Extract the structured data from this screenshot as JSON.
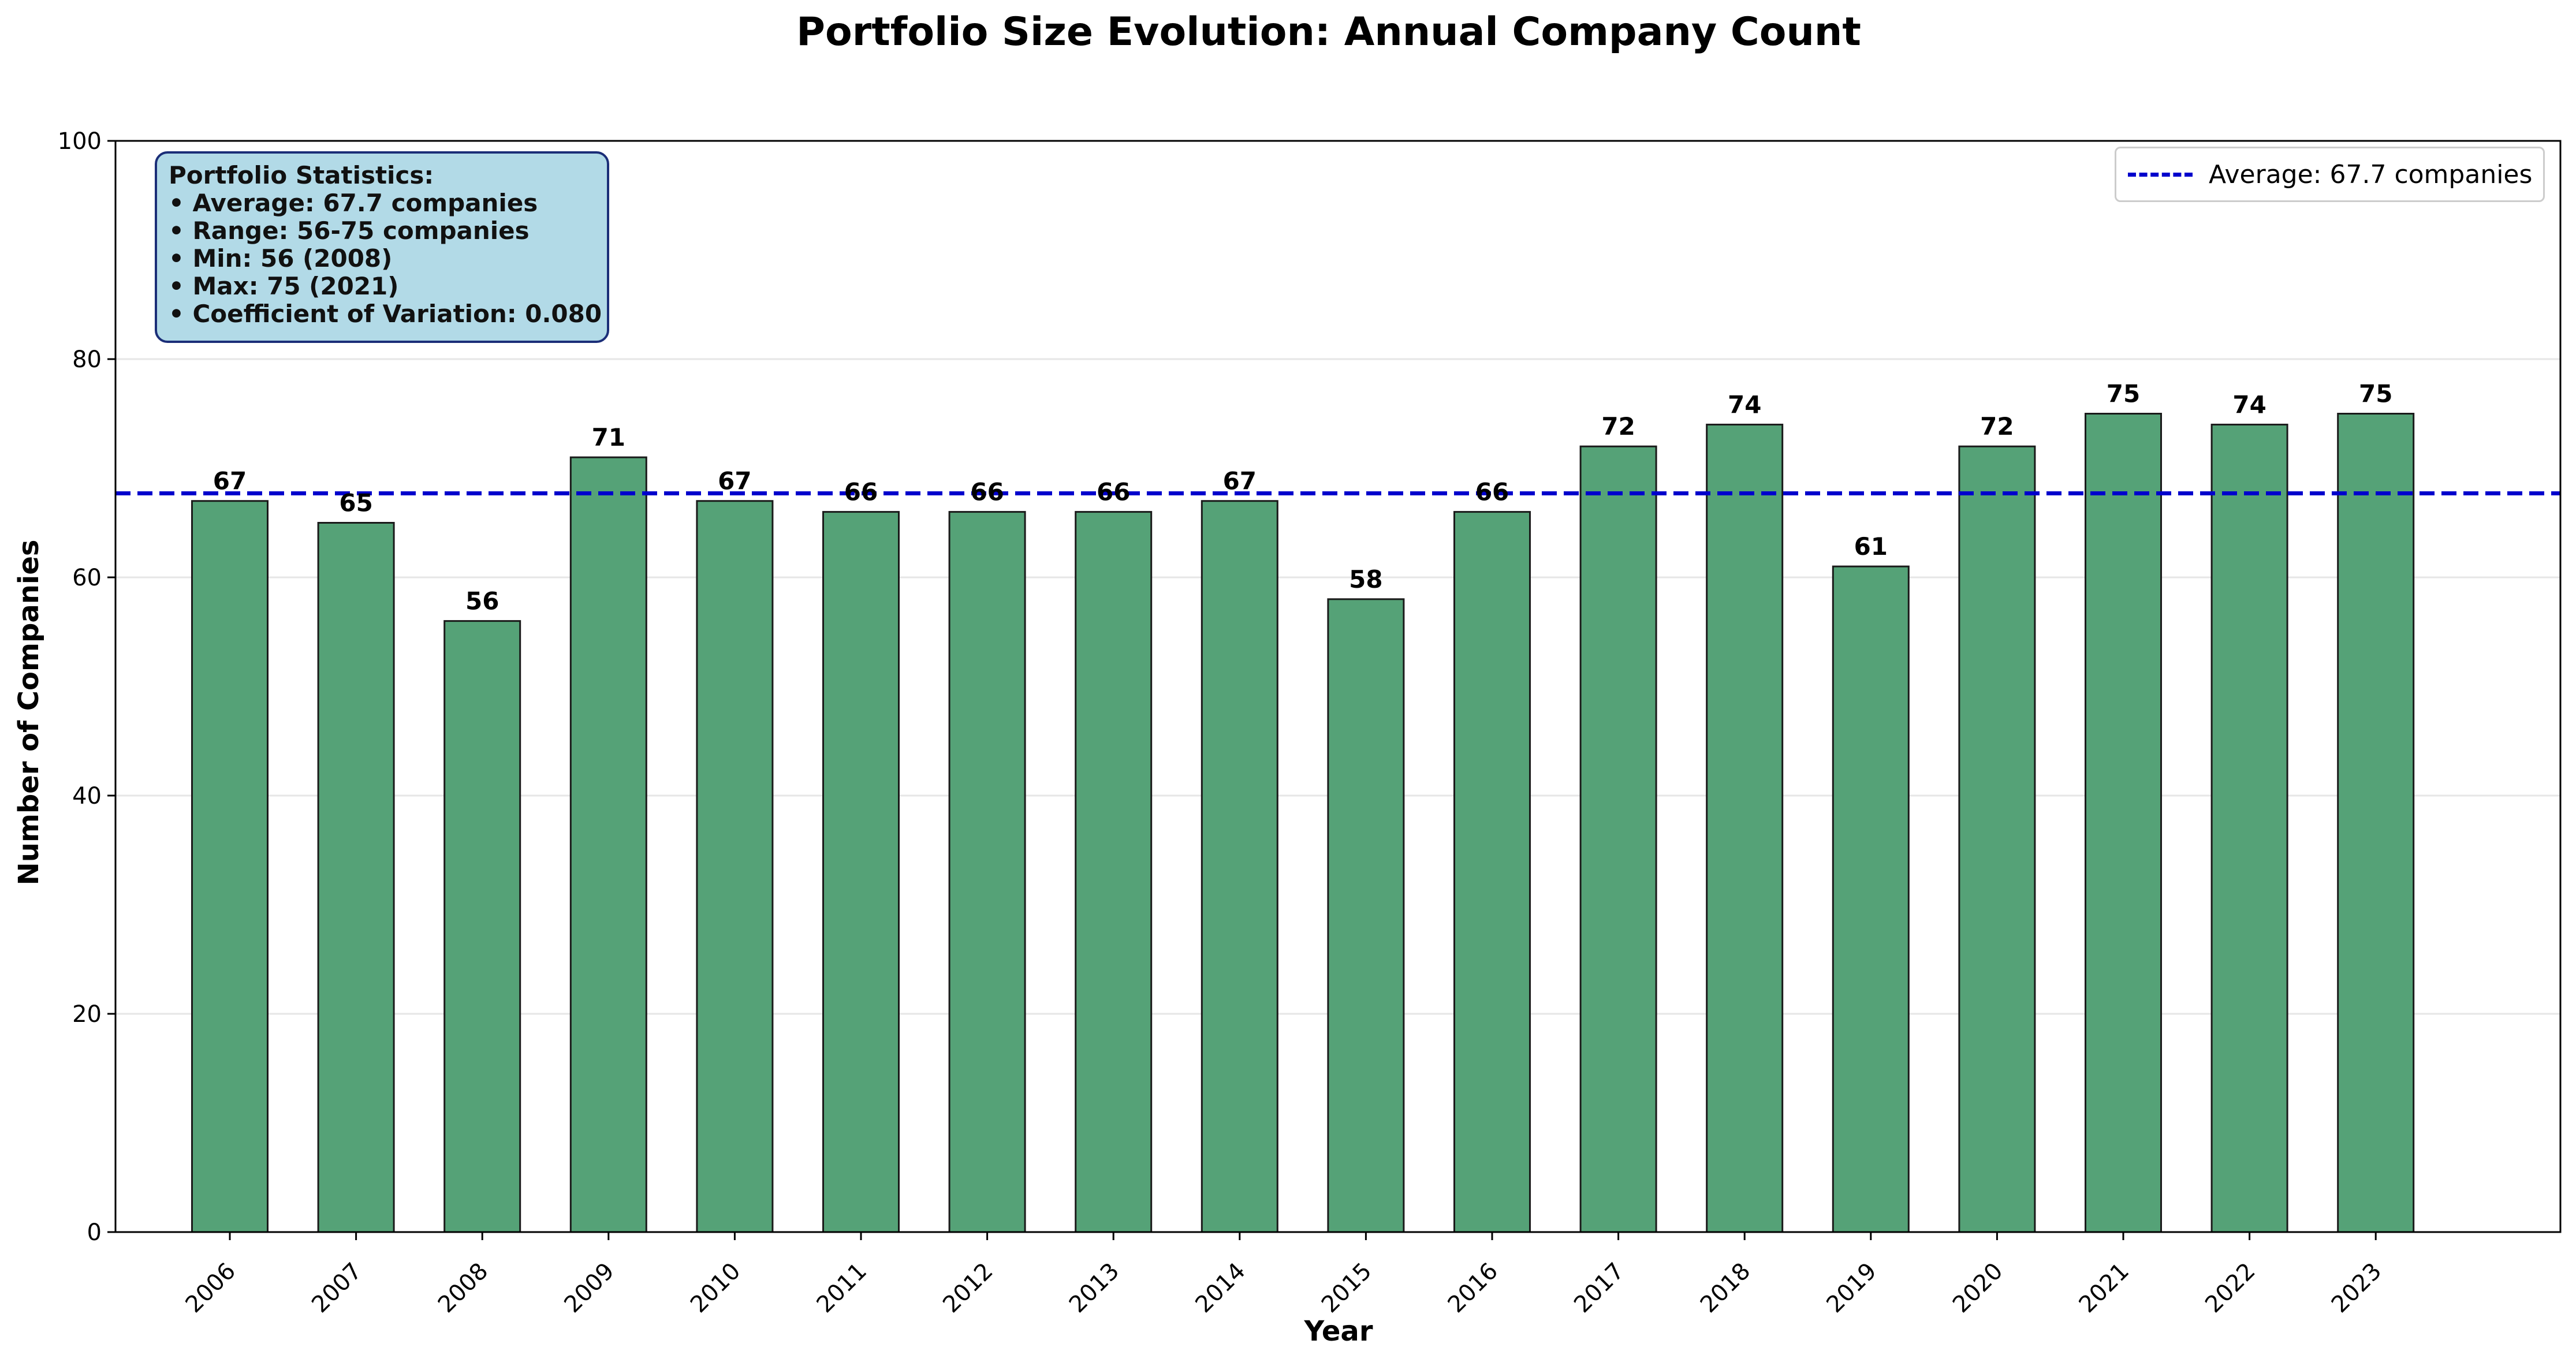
{
  "chart_data": {
    "type": "bar",
    "title": "Portfolio Size Evolution: Annual Company Count",
    "xlabel": "Year",
    "ylabel": "Number of Companies",
    "ylim": [
      0,
      100
    ],
    "yticks": [
      0,
      20,
      40,
      60,
      80,
      100
    ],
    "grid": "horizontal",
    "categories": [
      "2006",
      "2007",
      "2008",
      "2009",
      "2010",
      "2011",
      "2012",
      "2013",
      "2014",
      "2015",
      "2016",
      "2017",
      "2018",
      "2019",
      "2020",
      "2021",
      "2022",
      "2023"
    ],
    "values": [
      67,
      65,
      56,
      71,
      67,
      66,
      66,
      66,
      67,
      58,
      66,
      72,
      74,
      61,
      72,
      75,
      74,
      75
    ],
    "bar_color": "#55a277",
    "bar_edge_color": "#1a1a1a",
    "average": {
      "value": 67.7,
      "label": "Average: 67.7 companies",
      "color": "#0000cc",
      "style": "dashed"
    },
    "legend_position": "top-right",
    "stats_box": {
      "title": "Portfolio Statistics:",
      "lines": [
        "• Average: 67.7 companies",
        "• Range: 56-75 companies",
        "• Min: 56 (2008)",
        "• Max: 75 (2021)",
        "• Coefficient of Variation: 0.080"
      ]
    }
  }
}
